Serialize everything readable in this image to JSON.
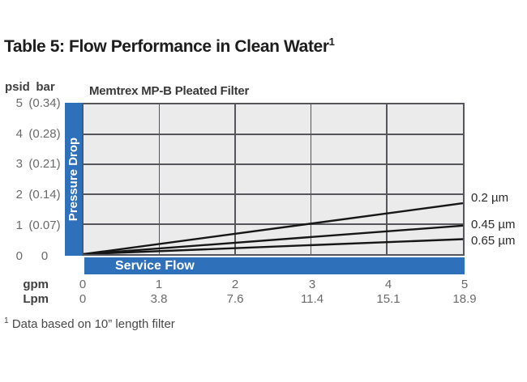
{
  "page": {
    "title_text": "Table 5: Flow Performance in Clean Water",
    "title_sup": "1",
    "footnote_sup": "1",
    "footnote_text": " Data based on 10” length filter"
  },
  "chart_data": {
    "type": "line",
    "title": "Memtrex MP-B Pleated Filter",
    "x_axis": {
      "label": "Service Flow",
      "unit_rows": [
        "gpm",
        "Lpm"
      ],
      "gpm_ticks": [
        "0",
        "1",
        "2",
        "3",
        "4",
        "5"
      ],
      "lpm_ticks": [
        "0",
        "3.8",
        "7.6",
        "11.4",
        "15.1",
        "18.9"
      ],
      "range_gpm": [
        0,
        5
      ]
    },
    "y_axis": {
      "label": "Pressure Drop",
      "unit_headers": [
        "psid",
        "bar"
      ],
      "psid_ticks": [
        "5",
        "4",
        "3",
        "2",
        "1",
        "0"
      ],
      "bar_ticks": [
        "(0.34)",
        "(0.28)",
        "(0.21)",
        "(0.14)",
        "(0.07)",
        "0"
      ],
      "range_psid": [
        0,
        5
      ]
    },
    "series": [
      {
        "name": "0.2 µm",
        "x_gpm": [
          0,
          5
        ],
        "y_psid": [
          0,
          1.7
        ]
      },
      {
        "name": "0.45 µm",
        "x_gpm": [
          0,
          5
        ],
        "y_psid": [
          0,
          0.95
        ]
      },
      {
        "name": "0.65 µm",
        "x_gpm": [
          0,
          5
        ],
        "y_psid": [
          0,
          0.5
        ]
      }
    ],
    "grid": true,
    "legend_position": "right",
    "colors": {
      "accent_blue": "#2e70ba",
      "plot_background": "#ebebeb",
      "grid_line": "#55565b",
      "series_line": "#161616"
    }
  }
}
